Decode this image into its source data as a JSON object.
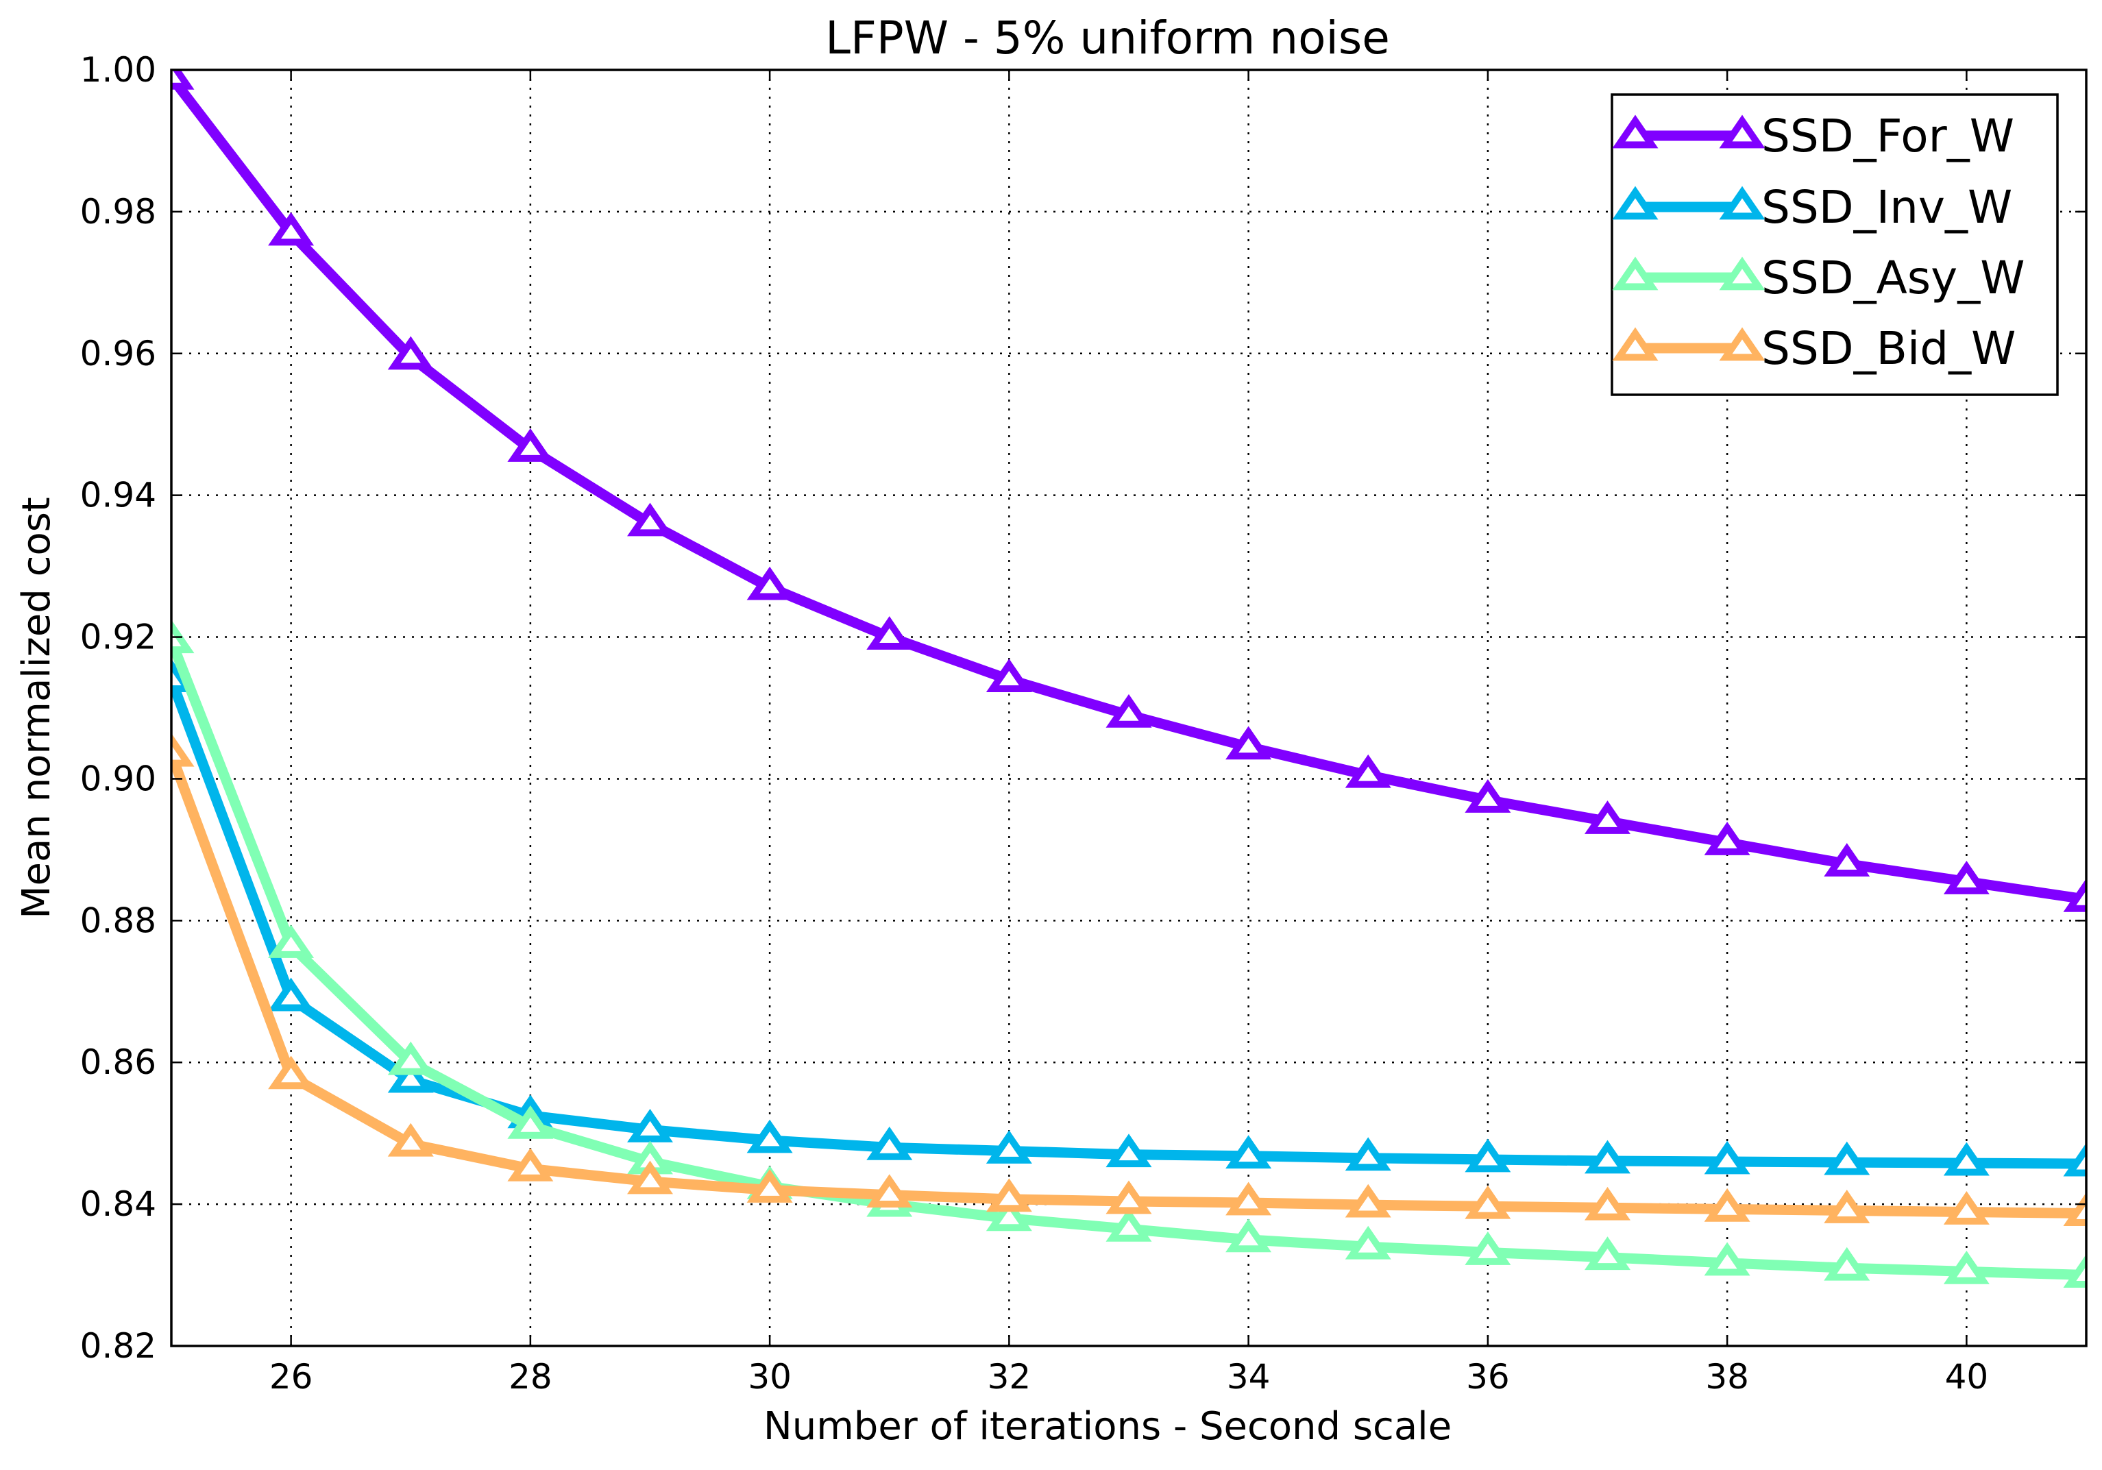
{
  "chart_data": {
    "type": "line",
    "title": "LFPW - 5% uniform noise",
    "xlabel": "Number of iterations - Second scale",
    "ylabel": "Mean normalized cost",
    "xlim": [
      25,
      41
    ],
    "ylim": [
      0.82,
      1.0
    ],
    "x_ticks": [
      "26",
      "28",
      "30",
      "32",
      "34",
      "36",
      "38",
      "40"
    ],
    "y_ticks": [
      "0.82",
      "0.84",
      "0.86",
      "0.88",
      "0.90",
      "0.92",
      "0.94",
      "0.96",
      "0.98",
      "1.00"
    ],
    "grid": true,
    "legend_position": "top-right",
    "marker": "triangle-up-open",
    "x": [
      25,
      26,
      27,
      28,
      29,
      30,
      31,
      32,
      33,
      34,
      35,
      36,
      37,
      38,
      39,
      40,
      41
    ],
    "series": [
      {
        "name": "SSD_For_W",
        "color": "#8000ff",
        "values": [
          0.999,
          0.977,
          0.9595,
          0.9465,
          0.936,
          0.927,
          0.92,
          0.914,
          0.909,
          0.9045,
          0.9005,
          0.897,
          0.894,
          0.891,
          0.888,
          0.8855,
          0.883
        ]
      },
      {
        "name": "SSD_Inv_W",
        "color": "#00b5eb",
        "values": [
          0.914,
          0.869,
          0.8575,
          0.8525,
          0.8505,
          0.849,
          0.848,
          0.8475,
          0.847,
          0.8468,
          0.8465,
          0.8463,
          0.8461,
          0.846,
          0.8459,
          0.8458,
          0.8457
        ]
      },
      {
        "name": "SSD_Asy_W",
        "color": "#80ffb4",
        "values": [
          0.9195,
          0.8765,
          0.86,
          0.851,
          0.846,
          0.8425,
          0.84,
          0.838,
          0.8365,
          0.835,
          0.834,
          0.8332,
          0.8325,
          0.8317,
          0.831,
          0.8305,
          0.83
        ]
      },
      {
        "name": "SSD_Bid_W",
        "color": "#ffb360",
        "values": [
          0.9035,
          0.858,
          0.8485,
          0.845,
          0.8432,
          0.842,
          0.8413,
          0.8407,
          0.8404,
          0.8402,
          0.8399,
          0.8397,
          0.8395,
          0.8393,
          0.8391,
          0.8389,
          0.8387
        ]
      }
    ]
  }
}
